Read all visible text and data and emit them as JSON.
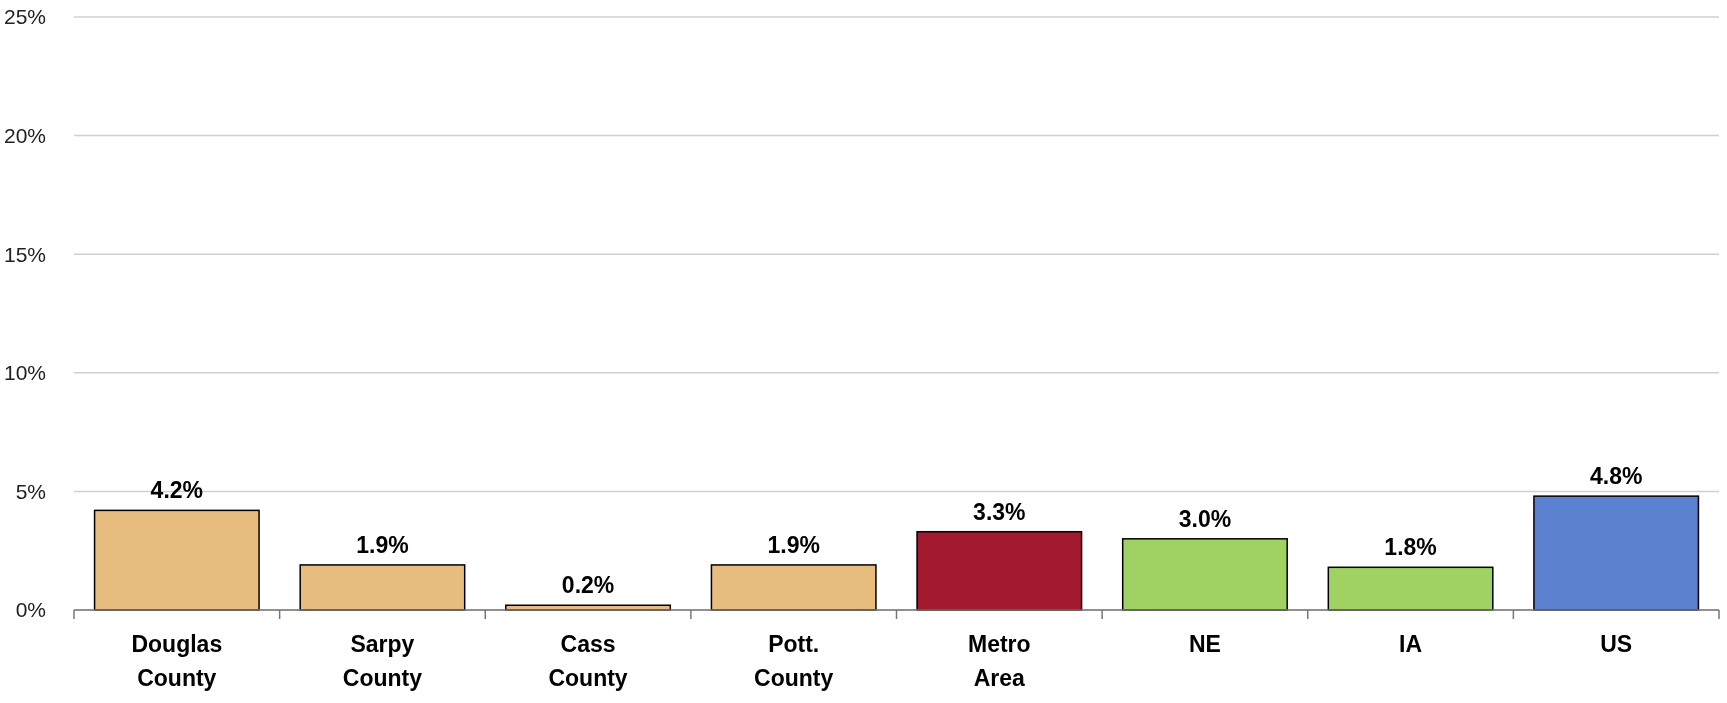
{
  "chart_data": {
    "type": "bar",
    "categories": [
      "Douglas County",
      "Sarpy County",
      "Cass County",
      "Pott. County",
      "Metro Area",
      "NE",
      "IA",
      "US"
    ],
    "values": [
      4.2,
      1.9,
      0.2,
      1.9,
      3.3,
      3.0,
      1.8,
      4.8
    ],
    "colors": [
      "#e6bc7f",
      "#e6bc7f",
      "#e6bc7f",
      "#e6bc7f",
      "#a31a2e",
      "#9fd163",
      "#9fd163",
      "#5b80d0"
    ],
    "value_labels": [
      "4.2%",
      "1.9%",
      "0.2%",
      "1.9%",
      "3.3%",
      "3.0%",
      "1.8%",
      "4.8%"
    ],
    "ylim": [
      0,
      25
    ],
    "yticks": [
      {
        "value": 0,
        "label": "0%"
      },
      {
        "value": 5,
        "label": "5%"
      },
      {
        "value": 10,
        "label": "10%"
      },
      {
        "value": 15,
        "label": "15%"
      },
      {
        "value": 20,
        "label": "20%"
      },
      {
        "value": 25,
        "label": "25%"
      }
    ],
    "grid": true
  }
}
